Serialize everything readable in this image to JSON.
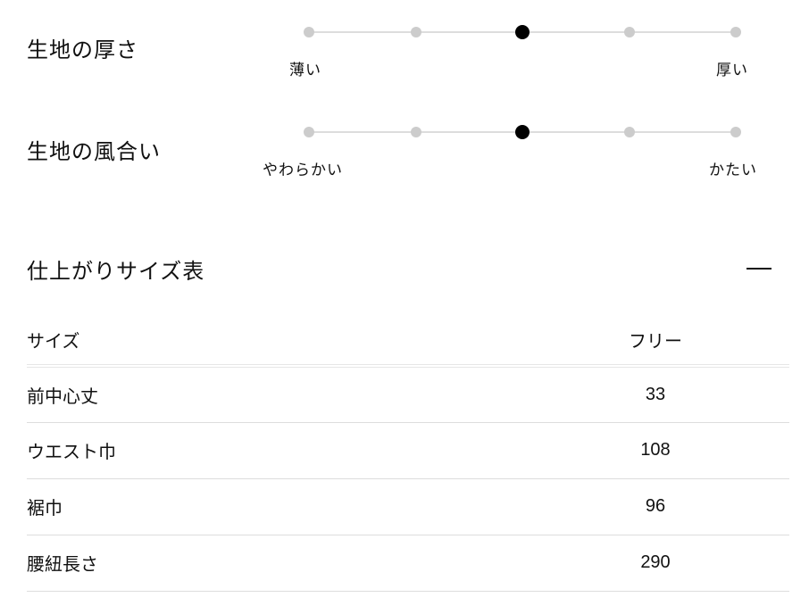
{
  "attributes": [
    {
      "label": "生地の厚さ",
      "min_label": "薄い",
      "max_label": "厚い",
      "levels": 5,
      "selected": 3
    },
    {
      "label": "生地の風合い",
      "min_label": "やわらかい",
      "max_label": "かたい",
      "levels": 5,
      "selected": 3
    }
  ],
  "size_table": {
    "title": "仕上がりサイズ表",
    "toggle_icon": "minus-icon",
    "header": [
      "サイズ",
      "フリー"
    ],
    "rows": [
      [
        "前中心丈",
        "33"
      ],
      [
        "ウエスト巾",
        "108"
      ],
      [
        "裾巾",
        "96"
      ],
      [
        "腰紐長さ",
        "290"
      ]
    ]
  }
}
